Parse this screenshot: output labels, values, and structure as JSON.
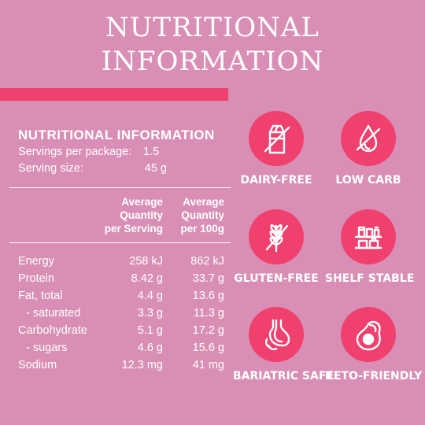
{
  "heading": {
    "line1": "NUTRITIONAL",
    "line2": "INFORMATION"
  },
  "colors": {
    "background": "#d98fb5",
    "accent": "#f0406e",
    "text": "#ffffff"
  },
  "panel": {
    "title": "NUTRITIONAL INFORMATION",
    "servings_label": "Servings per package:",
    "servings_value": "1.5",
    "serving_size_label": "Serving size:",
    "serving_size_value": "45 g",
    "col1": [
      "Average",
      "Quantity",
      "per Serving"
    ],
    "col2": [
      "Average",
      "Quantity",
      "per 100g"
    ],
    "rows": [
      {
        "label": "Energy",
        "per_serving": "258 kJ",
        "per_100g": "862 kJ"
      },
      {
        "label": "Protein",
        "per_serving": "8.42 g",
        "per_100g": "33.7 g"
      },
      {
        "label": "Fat, total",
        "per_serving": "4.4 g",
        "per_100g": "13.6 g"
      },
      {
        "label": "- saturated",
        "per_serving": "3.3 g",
        "per_100g": "11.3 g"
      },
      {
        "label": "Carbohydrate",
        "per_serving": "5.1 g",
        "per_100g": "17.2 g"
      },
      {
        "label": "- sugars",
        "per_serving": "4.6 g",
        "per_100g": "15.6 g"
      },
      {
        "label": "Sodium",
        "per_serving": "12.3 mg",
        "per_100g": "41 mg"
      }
    ]
  },
  "badges": [
    {
      "icon": "milk-carton-crossed-icon",
      "label": "DAIRY-FREE"
    },
    {
      "icon": "drop-crossed-icon",
      "label": "LOW CARB"
    },
    {
      "icon": "wheat-crossed-icon",
      "label": "GLUTEN-FREE"
    },
    {
      "icon": "pantry-shelf-icon",
      "label": "SHELF STABLE"
    },
    {
      "icon": "stomach-icon",
      "label": "BARIATRIC SAFE"
    },
    {
      "icon": "avocado-icon",
      "label": "KETO-FRIENDLY"
    }
  ]
}
